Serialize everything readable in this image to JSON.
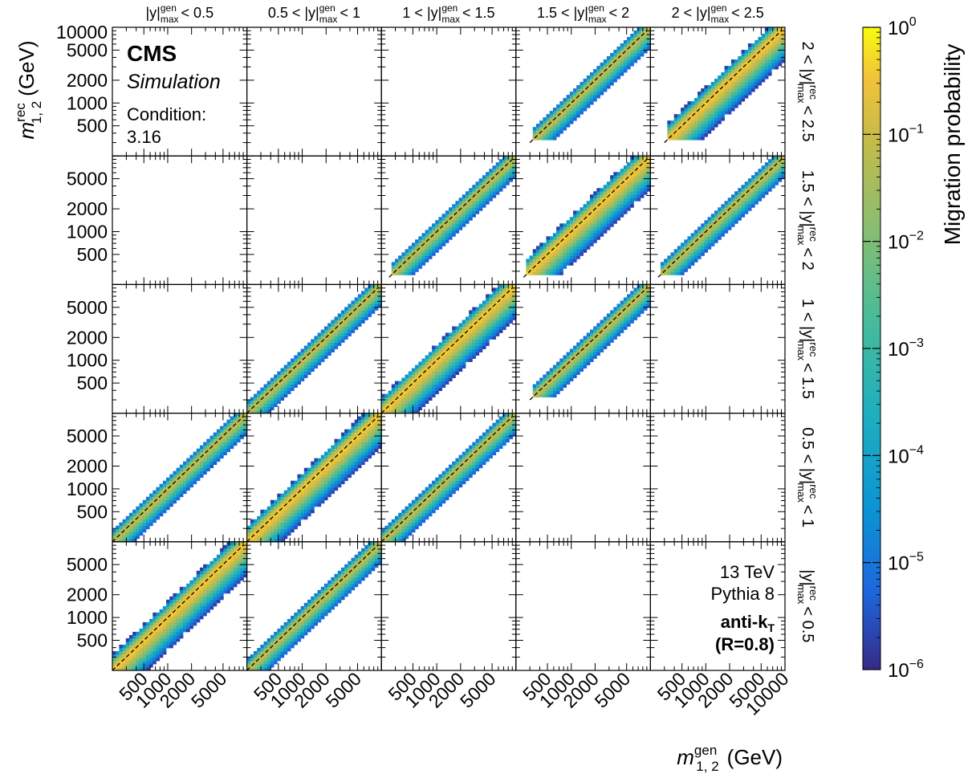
{
  "chart_data": {
    "type": "heatmap",
    "layout": "5x5 grid of migration matrices",
    "z_label": "Migration probability",
    "z_scale": "log",
    "z_range": [
      1e-06,
      1
    ],
    "z_ticks": [
      {
        "base": "10",
        "exp": "0"
      },
      {
        "base": "10",
        "exp": "−1"
      },
      {
        "base": "10",
        "exp": "−2"
      },
      {
        "base": "10",
        "exp": "−3"
      },
      {
        "base": "10",
        "exp": "−4"
      },
      {
        "base": "10",
        "exp": "−5"
      },
      {
        "base": "10",
        "exp": "−6"
      }
    ],
    "colormap": [
      "#352a87",
      "#1f66dd",
      "#0b94d3",
      "#20afbf",
      "#4abb98",
      "#8fbd6d",
      "#c7bb49",
      "#f2c23a",
      "#f9fb0e"
    ],
    "x_axis": {
      "label_main": "m",
      "label_sup": "gen",
      "label_sub": "1, 2",
      "label_unit": "(GeV)",
      "scale": "log",
      "tick_labels": [
        "500",
        "1000",
        "2000",
        "5000"
      ],
      "last_column_extra_tick": "10000"
    },
    "y_axis": {
      "label_main": "m",
      "label_sup": "rec",
      "label_sub": "1, 2",
      "label_unit": "(GeV)",
      "scale": "log",
      "tick_labels_top_row": [
        "10000",
        "5000",
        "2000",
        "1000",
        "500"
      ],
      "tick_labels_other_rows": [
        "5000",
        "2000",
        "1000",
        "500"
      ]
    },
    "column_headers": [
      {
        "pre": "",
        "post": "< 0.5"
      },
      {
        "pre": "0.5 <",
        "post": "< 1"
      },
      {
        "pre": "1 <",
        "post": "< 1.5"
      },
      {
        "pre": "1.5 <",
        "post": "< 2"
      },
      {
        "pre": "2 <",
        "post": "< 2.5"
      }
    ],
    "row_headers": [
      {
        "pre": "2 <",
        "post": "< 2.5"
      },
      {
        "pre": "1.5 <",
        "post": "< 2"
      },
      {
        "pre": "1 <",
        "post": "< 1.5"
      },
      {
        "pre": "0.5 <",
        "post": "< 1"
      },
      {
        "pre": "",
        "post": "< 0.5"
      }
    ],
    "header_var": {
      "main": "|y|",
      "sub": "max",
      "sup_gen": "gen",
      "sup_rec": "rec"
    },
    "diagonal": "dashed line y = x",
    "panels": [
      {
        "row": 0,
        "col": 3,
        "populated": true,
        "start_mass": 300,
        "strength": "weak"
      },
      {
        "row": 0,
        "col": 4,
        "populated": true,
        "start_mass": 300,
        "strength": "strong"
      },
      {
        "row": 1,
        "col": 2,
        "populated": true,
        "start_mass": 250,
        "strength": "weak"
      },
      {
        "row": 1,
        "col": 3,
        "populated": true,
        "start_mass": 250,
        "strength": "strong"
      },
      {
        "row": 1,
        "col": 4,
        "populated": true,
        "start_mass": 250,
        "strength": "weak"
      },
      {
        "row": 2,
        "col": 1,
        "populated": true,
        "start_mass": 200,
        "strength": "weak"
      },
      {
        "row": 2,
        "col": 2,
        "populated": true,
        "start_mass": 200,
        "strength": "strong"
      },
      {
        "row": 2,
        "col": 3,
        "populated": true,
        "start_mass": 300,
        "strength": "weak"
      },
      {
        "row": 3,
        "col": 0,
        "populated": true,
        "start_mass": 200,
        "strength": "weak"
      },
      {
        "row": 3,
        "col": 1,
        "populated": true,
        "start_mass": 200,
        "strength": "strong"
      },
      {
        "row": 3,
        "col": 2,
        "populated": true,
        "start_mass": 200,
        "strength": "weak"
      },
      {
        "row": 4,
        "col": 0,
        "populated": true,
        "start_mass": 200,
        "strength": "strong"
      },
      {
        "row": 4,
        "col": 1,
        "populated": true,
        "start_mass": 200,
        "strength": "weak"
      }
    ]
  },
  "labels": {
    "cms": "CMS",
    "simulation": "Simulation",
    "condition_label": "Condition:",
    "condition_value": "3.16",
    "energy": "13 TeV",
    "generator": "Pythia 8",
    "algo_main": "anti-k",
    "algo_sub": "T",
    "radius": "(R=0.8)"
  }
}
